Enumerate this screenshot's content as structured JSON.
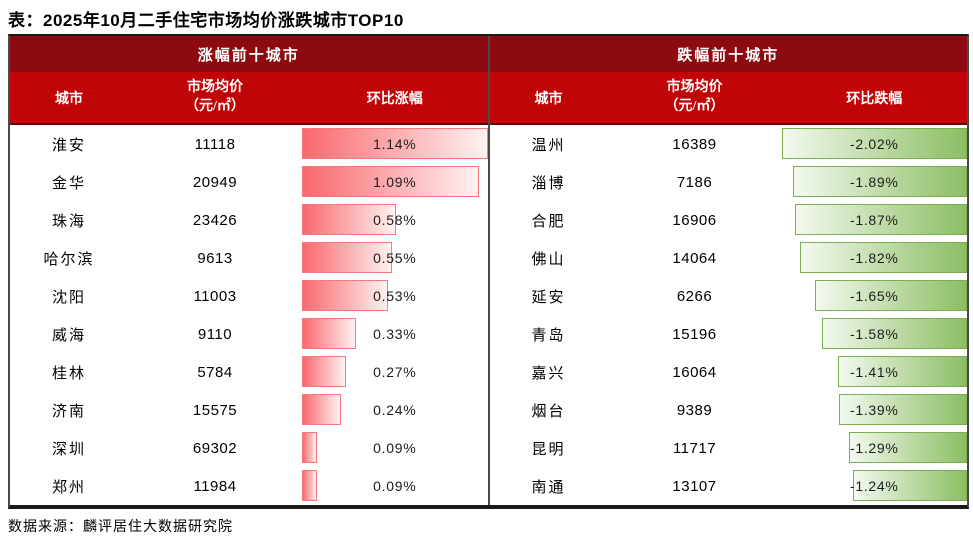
{
  "title": "表：2025年10月二手住宅市场均价涨跌城市TOP10",
  "source": "数据来源：麟评居住大数据研究院",
  "colors": {
    "dark_red": "#8D0A10",
    "bright_red": "#C00508",
    "red_bar_start": "#F9696E",
    "red_bar_end": "#FEF2F2",
    "red_bar_border": "#F8797C",
    "green_bar_start": "#F3F9EF",
    "green_bar_end": "#8CBE63",
    "green_bar_border": "#7CAF52",
    "divider": "#4A4A4A",
    "frame": "#1A1A1A"
  },
  "chart_data": [
    {
      "type": "table",
      "panel": "gainers",
      "title": "涨幅前十城市",
      "columns": {
        "city": "城市",
        "price": "市场均价\n（元/㎡）",
        "change": "环比涨幅"
      },
      "bar": {
        "color": "red",
        "anchor": "left",
        "max_value": 1.14
      },
      "rows": [
        {
          "city": "淮安",
          "price": "11118",
          "pct_label": "1.14%",
          "pct_value": 1.14
        },
        {
          "city": "金华",
          "price": "20949",
          "pct_label": "1.09%",
          "pct_value": 1.09
        },
        {
          "city": "珠海",
          "price": "23426",
          "pct_label": "0.58%",
          "pct_value": 0.58
        },
        {
          "city": "哈尔滨",
          "price": "9613",
          "pct_label": "0.55%",
          "pct_value": 0.55
        },
        {
          "city": "沈阳",
          "price": "11003",
          "pct_label": "0.53%",
          "pct_value": 0.53
        },
        {
          "city": "威海",
          "price": "9110",
          "pct_label": "0.33%",
          "pct_value": 0.33
        },
        {
          "city": "桂林",
          "price": "5784",
          "pct_label": "0.27%",
          "pct_value": 0.27
        },
        {
          "city": "济南",
          "price": "15575",
          "pct_label": "0.24%",
          "pct_value": 0.24
        },
        {
          "city": "深圳",
          "price": "69302",
          "pct_label": "0.09%",
          "pct_value": 0.09
        },
        {
          "city": "郑州",
          "price": "11984",
          "pct_label": "0.09%",
          "pct_value": 0.09
        }
      ]
    },
    {
      "type": "table",
      "panel": "decliners",
      "title": "跌幅前十城市",
      "columns": {
        "city": "城市",
        "price": "市场均价\n（元/㎡）",
        "change": "环比跌幅"
      },
      "bar": {
        "color": "green",
        "anchor": "right",
        "max_value": 2.02
      },
      "rows": [
        {
          "city": "温州",
          "price": "16389",
          "pct_label": "-2.02%",
          "pct_value": 2.02
        },
        {
          "city": "淄博",
          "price": "7186",
          "pct_label": "-1.89%",
          "pct_value": 1.89
        },
        {
          "city": "合肥",
          "price": "16906",
          "pct_label": "-1.87%",
          "pct_value": 1.87
        },
        {
          "city": "佛山",
          "price": "14064",
          "pct_label": "-1.82%",
          "pct_value": 1.82
        },
        {
          "city": "延安",
          "price": "6266",
          "pct_label": "-1.65%",
          "pct_value": 1.65
        },
        {
          "city": "青岛",
          "price": "15196",
          "pct_label": "-1.58%",
          "pct_value": 1.58
        },
        {
          "city": "嘉兴",
          "price": "16064",
          "pct_label": "-1.41%",
          "pct_value": 1.41
        },
        {
          "city": "烟台",
          "price": "9389",
          "pct_label": "-1.39%",
          "pct_value": 1.39
        },
        {
          "city": "昆明",
          "price": "11717",
          "pct_label": "-1.29%",
          "pct_value": 1.29
        },
        {
          "city": "南通",
          "price": "13107",
          "pct_label": "-1.24%",
          "pct_value": 1.24
        }
      ]
    }
  ]
}
